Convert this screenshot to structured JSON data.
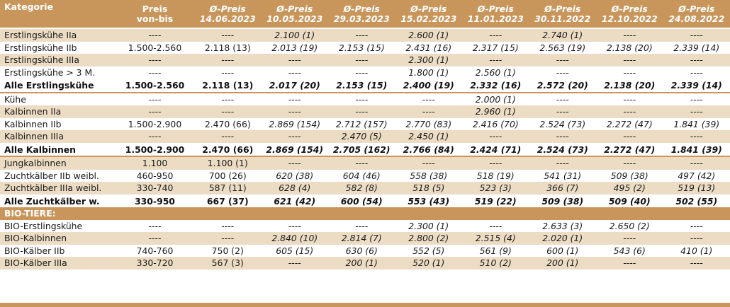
{
  "headers": [
    {
      "line1": "Kategorie",
      "line2": ""
    },
    {
      "line1": "Preis",
      "line2": "von-bis"
    },
    {
      "line1": "Ø-Preis",
      "line2": "14.06.2023"
    },
    {
      "line1": "Ø-Preis",
      "line2": "10.05.2023"
    },
    {
      "line1": "Ø-Preis",
      "line2": "29.03.2023"
    },
    {
      "line1": "Ø-Preis",
      "line2": "15.02.2023"
    },
    {
      "line1": "Ø-Preis",
      "line2": "11.01.2023"
    },
    {
      "line1": "Ø-Preis",
      "line2": "30.11.2022"
    },
    {
      "line1": "Ø-Preis",
      "line2": "12.10.2022"
    },
    {
      "line1": "Ø-Preis",
      "line2": "24.08.2022"
    }
  ],
  "rows": [
    {
      "kind": "alt",
      "cells": [
        "Erstlingskühe IIa",
        "----",
        "----",
        "2.100 (1)",
        "----",
        "2.600 (1)",
        "----",
        "2.740 (1)",
        "----",
        "----"
      ]
    },
    {
      "kind": "white",
      "cells": [
        "Erstlingskühe IIb",
        "1.500-2.560",
        "2.118 (13)",
        "2.013 (19)",
        "2.153 (15)",
        "2.431 (16)",
        "2.317 (15)",
        "2.563 (19)",
        "2.138 (20)",
        "2.339 (14)"
      ]
    },
    {
      "kind": "alt",
      "cells": [
        "Erstlingskühe IIIa",
        "----",
        "----",
        "----",
        "----",
        "2.300 (1)",
        "----",
        "----",
        "----",
        "----"
      ]
    },
    {
      "kind": "white",
      "cells": [
        "Erstlingskühe > 3 M.",
        "----",
        "----",
        "----",
        "----",
        "1.800 (1)",
        "2.560 (1)",
        "----",
        "----",
        "----"
      ]
    },
    {
      "kind": "total",
      "cells": [
        "Alle Erstlingskühe",
        "1.500-2.560",
        "2.118 (13)",
        "2.017 (20)",
        "2.153 (15)",
        "2.400 (19)",
        "2.332 (16)",
        "2.572 (20)",
        "2.138 (20)",
        "2.339 (14)"
      ]
    },
    {
      "kind": "sep"
    },
    {
      "kind": "white",
      "cells": [
        "Kühe",
        "----",
        "----",
        "----",
        "----",
        "----",
        "2.000 (1)",
        "----",
        "----",
        "----"
      ]
    },
    {
      "kind": "alt",
      "cells": [
        "Kalbinnen IIa",
        "----",
        "----",
        "----",
        "----",
        "----",
        "2.960 (1)",
        "----",
        "----",
        "----"
      ]
    },
    {
      "kind": "white",
      "cells": [
        "Kalbinnen IIb",
        "1.500-2.900",
        "2.470 (66)",
        "2.869 (154)",
        "2.712 (157)",
        "2.770 (83)",
        "2.416 (70)",
        "2.524 (73)",
        "2.272 (47)",
        "1.841 (39)"
      ]
    },
    {
      "kind": "alt",
      "cells": [
        "Kalbinnen IIIa",
        "----",
        "----",
        "----",
        "2.470 (5)",
        "2.450 (1)",
        "----",
        "----",
        "----",
        "----"
      ]
    },
    {
      "kind": "total",
      "cells": [
        "Alle Kalbinnen",
        "1.500-2.900",
        "2.470 (66)",
        "2.869 (154)",
        "2.705 (162)",
        "2.766 (84)",
        "2.424 (71)",
        "2.524 (73)",
        "2.272 (47)",
        "1.841 (39)"
      ]
    },
    {
      "kind": "sep"
    },
    {
      "kind": "alt",
      "cells": [
        "Jungkalbinnen",
        "1.100",
        "1.100 (1)",
        "----",
        "----",
        "----",
        "----",
        "----",
        "----",
        "----"
      ]
    },
    {
      "kind": "white",
      "cells": [
        "Zuchtkälber IIb weibl.",
        "460-950",
        "700 (26)",
        "620 (38)",
        "604 (46)",
        "558 (38)",
        "518 (19)",
        "541 (31)",
        "509 (38)",
        "497 (42)"
      ]
    },
    {
      "kind": "alt",
      "cells": [
        "Zuchtkälber IIIa weibl.",
        "330-740",
        "587 (11)",
        "628 (4)",
        "582 (8)",
        "518 (5)",
        "523 (3)",
        "366 (7)",
        "495 (2)",
        "519 (13)"
      ]
    },
    {
      "kind": "total",
      "cells": [
        "Alle Zuchtkälber w.",
        "330-950",
        "667 (37)",
        "621 (42)",
        "600 (54)",
        "553 (43)",
        "519 (22)",
        "509 (38)",
        "509 (40)",
        "502 (55)"
      ]
    },
    {
      "kind": "section",
      "cells": [
        "BIO-TIERE:"
      ]
    },
    {
      "kind": "white",
      "cells": [
        "BIO-Erstlingskühe",
        "----",
        "----",
        "----",
        "----",
        "2.300 (1)",
        "----",
        "2.633 (3)",
        "2.650 (2)",
        "----"
      ]
    },
    {
      "kind": "alt",
      "cells": [
        "BIO-Kalbinnen",
        "----",
        "----",
        "2.840 (10)",
        "2.814 (7)",
        "2.800 (2)",
        "2.515 (4)",
        "2.020 (1)",
        "----",
        "----"
      ]
    },
    {
      "kind": "white",
      "cells": [
        "BIO-Kälber IIb",
        "740-760",
        "750 (2)",
        "605 (15)",
        "630 (6)",
        "552 (5)",
        "561 (9)",
        "600 (1)",
        "543 (6)",
        "410 (1)"
      ]
    },
    {
      "kind": "alt",
      "cells": [
        "BIO-Kälber IIIa",
        "330-720",
        "567 (3)",
        "----",
        "200 (1)",
        "520 (1)",
        "510 (2)",
        "200 (1)",
        "----",
        "----"
      ]
    }
  ],
  "colors": {
    "header": "#c8955a",
    "stripe": "#ecdcc3"
  }
}
